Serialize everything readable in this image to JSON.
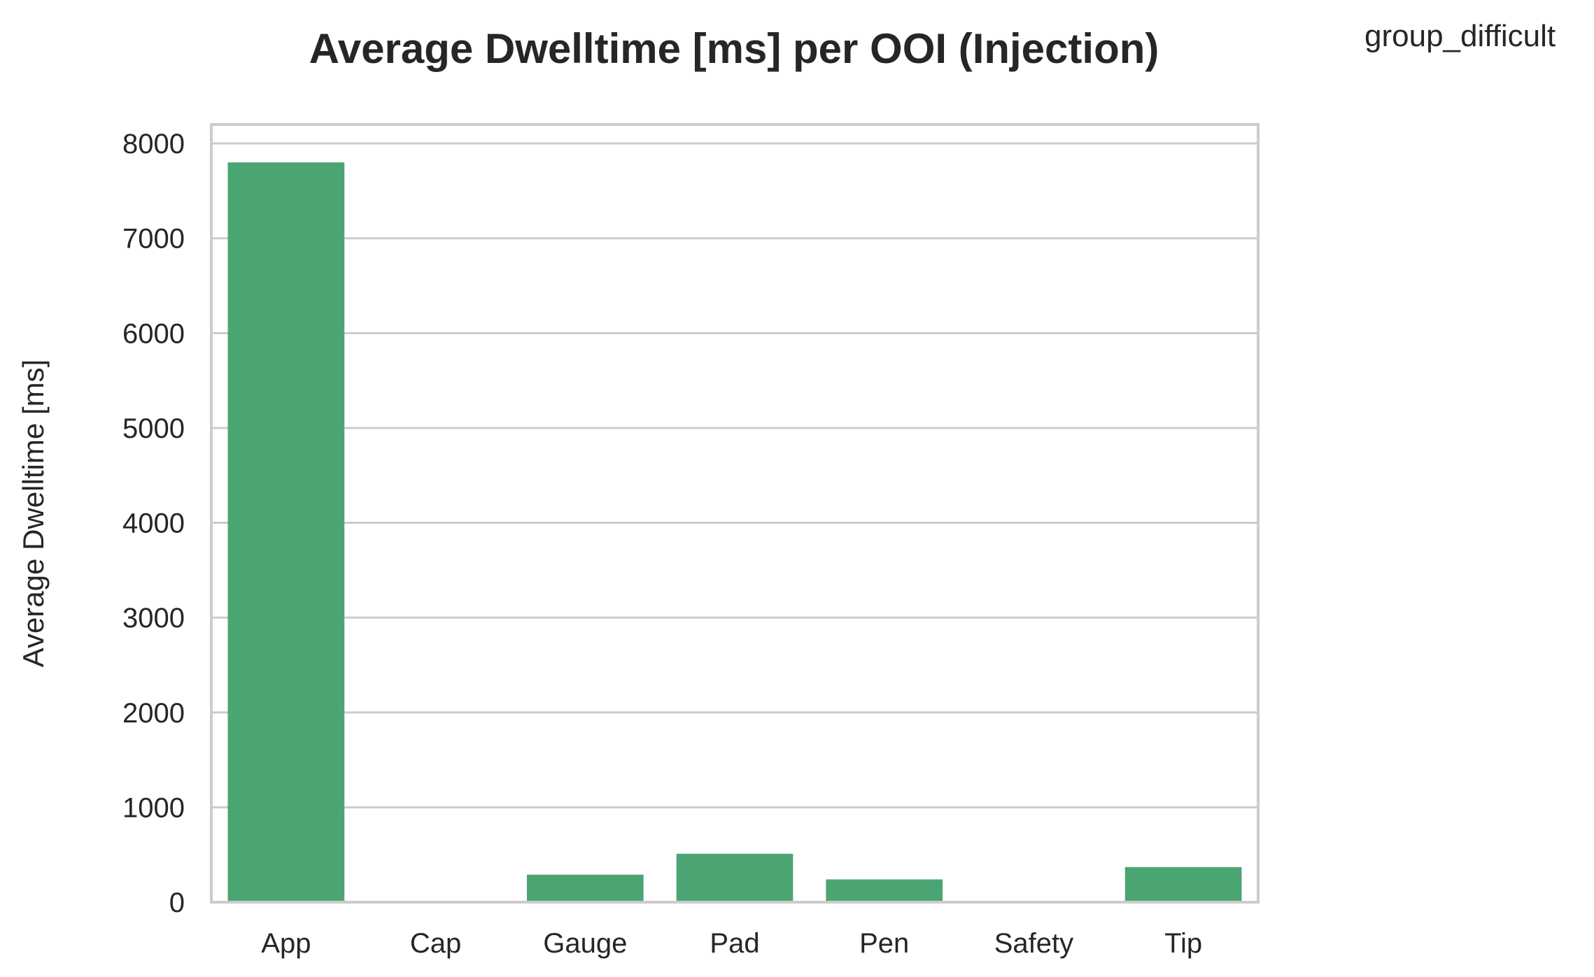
{
  "figure": {
    "corner_label": "group_difficult"
  },
  "chart_data": {
    "type": "bar",
    "title": "Average Dwelltime [ms] per OOI (Injection)",
    "xlabel": "",
    "ylabel": "Average Dwelltime [ms]",
    "categories": [
      "App",
      "Cap",
      "Gauge",
      "Pad",
      "Pen",
      "Safety",
      "Tip"
    ],
    "values": [
      7800,
      0,
      290,
      510,
      240,
      0,
      370
    ],
    "ylim": [
      0,
      8200
    ],
    "yticks": [
      0,
      1000,
      2000,
      3000,
      4000,
      5000,
      6000,
      7000,
      8000
    ],
    "grid": "horizontal",
    "bar_color": "#4ba572",
    "grid_color": "#cccccc",
    "text_color": "#262626"
  }
}
